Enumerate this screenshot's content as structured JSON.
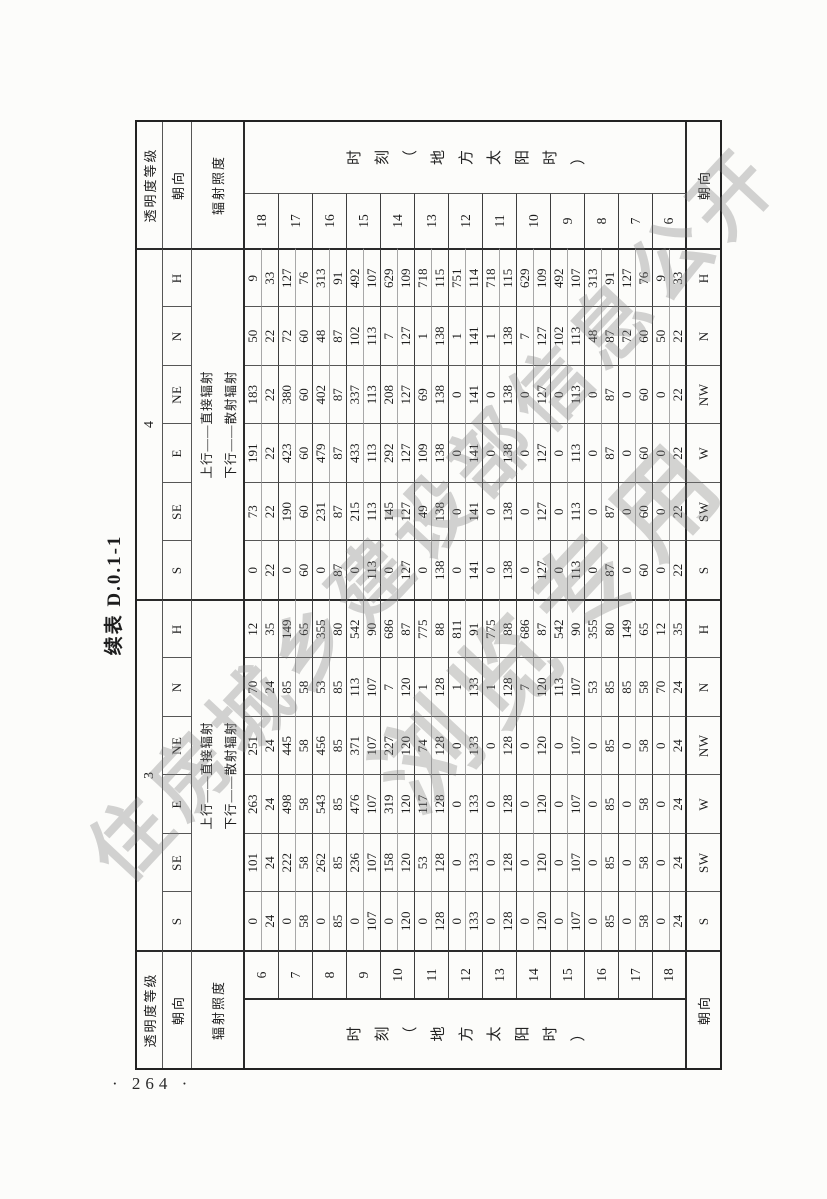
{
  "title": "续表 D.0.1-1",
  "page": {
    "number_label": "· 264 ·"
  },
  "watermark": {
    "line1": "住房城乡建设部信息公开",
    "line2": "浏览专用"
  },
  "table": {
    "corner_labels": {
      "grade": "透明度等级",
      "orientation": "朝向",
      "irradiance": "辐射照度"
    },
    "time_axis_label": "时刻（地方太阳时）",
    "note_lines": [
      "上行——直接辐射",
      "下行——散射辐射"
    ],
    "hours_forward": [
      "6",
      "7",
      "8",
      "9",
      "10",
      "11",
      "12",
      "13",
      "14",
      "15",
      "16",
      "17",
      "18"
    ],
    "hours_reverse": [
      "18",
      "17",
      "16",
      "15",
      "14",
      "13",
      "12",
      "11",
      "10",
      "9",
      "8",
      "7",
      "6"
    ],
    "groups": [
      {
        "grade": "3",
        "columns": [
          {
            "top": "S",
            "bottom": "S",
            "direct": [
              0,
              0,
              0,
              0,
              0,
              0,
              0,
              0,
              0,
              0,
              0,
              0,
              0
            ],
            "scattered": [
              24,
              58,
              85,
              107,
              120,
              128,
              133,
              128,
              120,
              107,
              85,
              58,
              24
            ]
          },
          {
            "top": "SE",
            "bottom": "SW",
            "direct": [
              101,
              222,
              262,
              236,
              158,
              53,
              0,
              0,
              0,
              0,
              0,
              0,
              0
            ],
            "scattered": [
              24,
              58,
              85,
              107,
              120,
              128,
              133,
              128,
              120,
              107,
              85,
              58,
              24
            ]
          },
          {
            "top": "E",
            "bottom": "W",
            "direct": [
              263,
              498,
              543,
              476,
              319,
              117,
              0,
              0,
              0,
              0,
              0,
              0,
              0
            ],
            "scattered": [
              24,
              58,
              85,
              107,
              120,
              128,
              133,
              128,
              120,
              107,
              85,
              58,
              24
            ]
          },
          {
            "top": "NE",
            "bottom": "NW",
            "direct": [
              251,
              445,
              456,
              371,
              227,
              74,
              0,
              0,
              0,
              0,
              0,
              0,
              0
            ],
            "scattered": [
              24,
              58,
              85,
              107,
              120,
              128,
              133,
              128,
              120,
              107,
              85,
              58,
              24
            ]
          },
          {
            "top": "N",
            "bottom": "N",
            "direct": [
              70,
              85,
              53,
              113,
              7,
              1,
              1,
              1,
              7,
              113,
              53,
              85,
              70
            ],
            "scattered": [
              24,
              58,
              85,
              107,
              120,
              128,
              133,
              128,
              120,
              107,
              85,
              58,
              24
            ]
          },
          {
            "top": "H",
            "bottom": "H",
            "direct": [
              12,
              149,
              355,
              542,
              686,
              775,
              811,
              775,
              686,
              542,
              355,
              149,
              12
            ],
            "scattered": [
              35,
              65,
              80,
              90,
              87,
              88,
              91,
              88,
              87,
              90,
              80,
              65,
              35
            ]
          }
        ]
      },
      {
        "grade": "4",
        "columns": [
          {
            "top": "S",
            "bottom": "S",
            "direct": [
              0,
              0,
              0,
              0,
              0,
              0,
              0,
              0,
              0,
              0,
              0,
              0,
              0
            ],
            "scattered": [
              22,
              60,
              87,
              113,
              127,
              138,
              141,
              138,
              127,
              113,
              87,
              60,
              22
            ]
          },
          {
            "top": "SE",
            "bottom": "SW",
            "direct": [
              73,
              190,
              231,
              215,
              145,
              49,
              0,
              0,
              0,
              0,
              0,
              0,
              0
            ],
            "scattered": [
              22,
              60,
              87,
              113,
              127,
              138,
              141,
              138,
              127,
              113,
              87,
              60,
              22
            ]
          },
          {
            "top": "E",
            "bottom": "W",
            "direct": [
              191,
              423,
              479,
              433,
              292,
              109,
              0,
              0,
              0,
              0,
              0,
              0,
              0
            ],
            "scattered": [
              22,
              60,
              87,
              113,
              127,
              138,
              141,
              138,
              127,
              113,
              87,
              60,
              22
            ]
          },
          {
            "top": "NE",
            "bottom": "NW",
            "direct": [
              183,
              380,
              402,
              337,
              208,
              69,
              0,
              0,
              0,
              0,
              0,
              0,
              0
            ],
            "scattered": [
              22,
              60,
              87,
              113,
              127,
              138,
              141,
              138,
              127,
              113,
              87,
              60,
              22
            ]
          },
          {
            "top": "N",
            "bottom": "N",
            "direct": [
              50,
              72,
              48,
              102,
              7,
              1,
              1,
              1,
              7,
              102,
              48,
              72,
              50
            ],
            "scattered": [
              22,
              60,
              87,
              113,
              127,
              138,
              141,
              138,
              127,
              113,
              87,
              60,
              22
            ]
          },
          {
            "top": "H",
            "bottom": "H",
            "direct": [
              9,
              127,
              313,
              492,
              629,
              718,
              751,
              718,
              629,
              492,
              313,
              127,
              9
            ],
            "scattered": [
              33,
              76,
              91,
              107,
              109,
              115,
              114,
              115,
              109,
              107,
              91,
              76,
              33
            ]
          }
        ]
      }
    ]
  }
}
